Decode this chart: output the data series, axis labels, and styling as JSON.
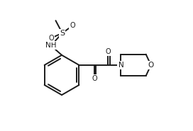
{
  "background_color": "#ffffff",
  "line_color": "#1a1a1a",
  "text_color": "#1a1a1a",
  "bond_lw": 1.4,
  "figsize": [
    2.72,
    1.85
  ],
  "dpi": 100,
  "font_size": 7.0,
  "xlim": [
    0.0,
    10.0
  ],
  "ylim": [
    0.0,
    7.5
  ]
}
